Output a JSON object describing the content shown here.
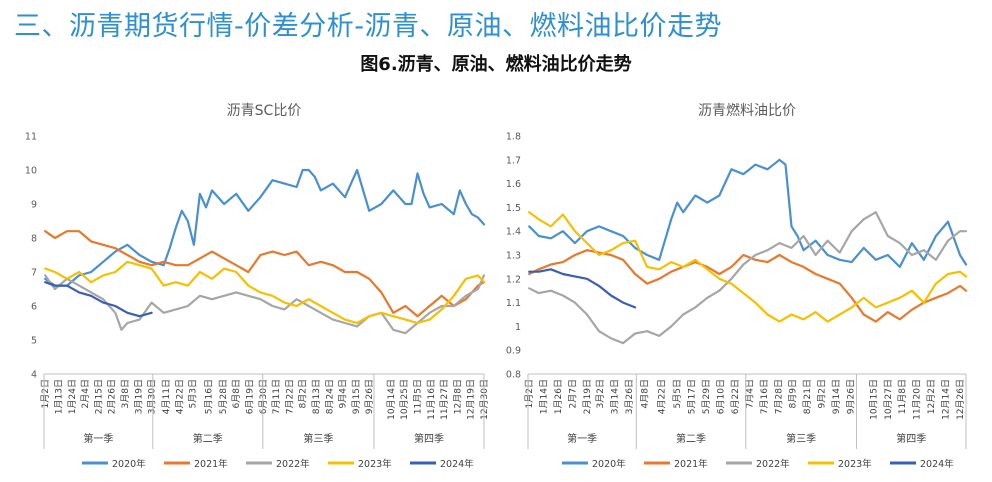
{
  "page": {
    "title": "三、沥青期货行情-价差分析-沥青、原油、燃料油比价走势",
    "figure_title": "图6.沥青、原油、燃料油比价走势"
  },
  "colors": {
    "2020年": "#4a90d0",
    "2021年": "#e8782b",
    "2022年": "#a6a6a6",
    "2023年": "#f6c000",
    "2024年": "#3a5eb5"
  },
  "chart_data": [
    {
      "type": "line",
      "title": "沥青SC比价",
      "ylim": [
        4,
        11
      ],
      "yticks": [
        4,
        5,
        6,
        7,
        8,
        9,
        10,
        11
      ],
      "x_range": [
        1,
        365
      ],
      "xlabels": [
        {
          "label": "1月2日",
          "day": 2
        },
        {
          "label": "1月13日",
          "day": 13
        },
        {
          "label": "1月24日",
          "day": 24
        },
        {
          "label": "2月4日",
          "day": 35
        },
        {
          "label": "2月15日",
          "day": 46
        },
        {
          "label": "2月26日",
          "day": 57
        },
        {
          "label": "3月8日",
          "day": 68
        },
        {
          "label": "3月19日",
          "day": 79
        },
        {
          "label": "3月30日",
          "day": 90
        },
        {
          "label": "4月11日",
          "day": 102
        },
        {
          "label": "4月22日",
          "day": 113
        },
        {
          "label": "5月3日",
          "day": 124
        },
        {
          "label": "5月16日",
          "day": 137
        },
        {
          "label": "5月28日",
          "day": 149
        },
        {
          "label": "6月8日",
          "day": 160
        },
        {
          "label": "6月19日",
          "day": 171
        },
        {
          "label": "6月30日",
          "day": 182
        },
        {
          "label": "7月11日",
          "day": 193
        },
        {
          "label": "7月22日",
          "day": 204
        },
        {
          "label": "8月2日",
          "day": 215
        },
        {
          "label": "8月13日",
          "day": 226
        },
        {
          "label": "8月24日",
          "day": 237
        },
        {
          "label": "9月4日",
          "day": 248
        },
        {
          "label": "9月15日",
          "day": 259
        },
        {
          "label": "9月26日",
          "day": 270
        },
        {
          "label": "10月14日",
          "day": 288
        },
        {
          "label": "10月25日",
          "day": 299
        },
        {
          "label": "11月5日",
          "day": 310
        },
        {
          "label": "11月16日",
          "day": 321
        },
        {
          "label": "11月27日",
          "day": 332
        },
        {
          "label": "12月8日",
          "day": 343
        },
        {
          "label": "12月19日",
          "day": 354
        },
        {
          "label": "12月30日",
          "day": 365
        }
      ],
      "quarters": [
        "第一季",
        "第二季",
        "第三季",
        "第四季"
      ],
      "series": [
        {
          "name": "2020年",
          "x": [
            2,
            10,
            20,
            30,
            40,
            50,
            60,
            70,
            80,
            90,
            100,
            105,
            110,
            115,
            120,
            125,
            130,
            135,
            140,
            150,
            160,
            170,
            180,
            190,
            200,
            210,
            215,
            220,
            225,
            230,
            240,
            250,
            255,
            260,
            270,
            280,
            290,
            300,
            305,
            310,
            315,
            320,
            330,
            340,
            345,
            350,
            355,
            360,
            365
          ],
          "y": [
            6.8,
            6.6,
            6.6,
            6.9,
            7.0,
            7.3,
            7.6,
            7.8,
            7.5,
            7.3,
            7.2,
            7.7,
            8.3,
            8.8,
            8.5,
            7.8,
            9.3,
            8.9,
            9.4,
            9.0,
            9.3,
            8.8,
            9.2,
            9.7,
            9.6,
            9.5,
            10.0,
            10.0,
            9.8,
            9.4,
            9.6,
            9.2,
            9.6,
            10.0,
            8.8,
            9.0,
            9.4,
            9.0,
            9.0,
            9.9,
            9.3,
            8.9,
            9.0,
            8.7,
            9.4,
            9.0,
            8.7,
            8.6,
            8.4
          ]
        },
        {
          "name": "2021年",
          "x": [
            2,
            10,
            20,
            30,
            40,
            50,
            60,
            70,
            80,
            90,
            100,
            110,
            120,
            130,
            140,
            150,
            160,
            170,
            180,
            190,
            200,
            210,
            220,
            230,
            240,
            250,
            260,
            270,
            280,
            290,
            300,
            310,
            320,
            330,
            340,
            350,
            360,
            365
          ],
          "y": [
            8.2,
            8.0,
            8.2,
            8.2,
            7.9,
            7.8,
            7.7,
            7.5,
            7.3,
            7.2,
            7.3,
            7.2,
            7.2,
            7.4,
            7.6,
            7.4,
            7.2,
            7.0,
            7.5,
            7.6,
            7.5,
            7.6,
            7.2,
            7.3,
            7.2,
            7.0,
            7.0,
            6.8,
            6.4,
            5.8,
            6.0,
            5.7,
            6.0,
            6.3,
            6.0,
            6.2,
            6.6,
            6.7
          ]
        },
        {
          "name": "2022年",
          "x": [
            2,
            10,
            20,
            30,
            40,
            50,
            60,
            65,
            70,
            80,
            90,
            100,
            110,
            120,
            130,
            140,
            150,
            160,
            170,
            180,
            190,
            200,
            210,
            220,
            230,
            240,
            250,
            260,
            270,
            280,
            290,
            300,
            310,
            320,
            330,
            340,
            350,
            360,
            365
          ],
          "y": [
            6.9,
            6.5,
            6.8,
            6.6,
            6.4,
            6.2,
            5.8,
            5.3,
            5.5,
            5.6,
            6.1,
            5.8,
            5.9,
            6.0,
            6.3,
            6.2,
            6.3,
            6.4,
            6.3,
            6.2,
            6.0,
            5.9,
            6.2,
            6.0,
            5.8,
            5.6,
            5.5,
            5.4,
            5.7,
            5.8,
            5.3,
            5.2,
            5.5,
            5.8,
            6.0,
            6.0,
            6.3,
            6.5,
            6.9
          ]
        },
        {
          "name": "2023年",
          "x": [
            2,
            10,
            20,
            30,
            40,
            50,
            60,
            70,
            80,
            90,
            100,
            110,
            120,
            130,
            140,
            150,
            160,
            170,
            180,
            190,
            200,
            210,
            220,
            230,
            240,
            250,
            260,
            270,
            280,
            290,
            300,
            310,
            320,
            330,
            340,
            350,
            360,
            365
          ],
          "y": [
            7.1,
            7.0,
            6.8,
            7.0,
            6.7,
            6.9,
            7.0,
            7.3,
            7.2,
            7.1,
            6.6,
            6.7,
            6.6,
            7.0,
            6.8,
            7.1,
            7.0,
            6.6,
            6.4,
            6.3,
            6.1,
            6.0,
            6.2,
            6.0,
            5.8,
            5.6,
            5.5,
            5.7,
            5.8,
            5.7,
            5.6,
            5.5,
            5.6,
            5.9,
            6.3,
            6.8,
            6.9,
            6.7
          ]
        },
        {
          "name": "2024年",
          "x": [
            2,
            10,
            20,
            30,
            40,
            50,
            60,
            70,
            80,
            90
          ],
          "y": [
            6.7,
            6.6,
            6.6,
            6.4,
            6.3,
            6.1,
            6.0,
            5.8,
            5.7,
            5.8
          ]
        }
      ],
      "legend": [
        "2020年",
        "2021年",
        "2022年",
        "2023年",
        "2024年"
      ]
    },
    {
      "type": "line",
      "title": "沥青燃料油比价",
      "ylim": [
        0.8,
        1.8
      ],
      "yticks": [
        0.8,
        0.9,
        1,
        1.1,
        1.2,
        1.3,
        1.4,
        1.5,
        1.6,
        1.7,
        1.8
      ],
      "x_range": [
        1,
        365
      ],
      "xlabels": [
        {
          "label": "1月2日",
          "day": 2
        },
        {
          "label": "1月14日",
          "day": 14
        },
        {
          "label": "1月26日",
          "day": 26
        },
        {
          "label": "2月7日",
          "day": 38
        },
        {
          "label": "2月19日",
          "day": 50
        },
        {
          "label": "3月2日",
          "day": 61
        },
        {
          "label": "3月14日",
          "day": 73
        },
        {
          "label": "3月26日",
          "day": 85
        },
        {
          "label": "4月8日",
          "day": 98
        },
        {
          "label": "4月22日",
          "day": 112
        },
        {
          "label": "5月5日",
          "day": 125
        },
        {
          "label": "5月17日",
          "day": 137
        },
        {
          "label": "5月29日",
          "day": 149
        },
        {
          "label": "6月10日",
          "day": 161
        },
        {
          "label": "6月22日",
          "day": 173
        },
        {
          "label": "7月4日",
          "day": 185
        },
        {
          "label": "7月16日",
          "day": 197
        },
        {
          "label": "7月28日",
          "day": 209
        },
        {
          "label": "8月9日",
          "day": 221
        },
        {
          "label": "8月21日",
          "day": 233
        },
        {
          "label": "9月2日",
          "day": 245
        },
        {
          "label": "9月14日",
          "day": 257
        },
        {
          "label": "9月26日",
          "day": 269
        },
        {
          "label": "10月15日",
          "day": 288
        },
        {
          "label": "10月27日",
          "day": 300
        },
        {
          "label": "11月8日",
          "day": 312
        },
        {
          "label": "11月20日",
          "day": 324
        },
        {
          "label": "12月2日",
          "day": 336
        },
        {
          "label": "12月14日",
          "day": 348
        },
        {
          "label": "12月26日",
          "day": 360
        }
      ],
      "quarters": [
        "第一季",
        "第二季",
        "第三季",
        "第四季"
      ],
      "series": [
        {
          "name": "2020年",
          "x": [
            2,
            10,
            20,
            30,
            40,
            50,
            60,
            70,
            80,
            90,
            100,
            110,
            120,
            125,
            130,
            140,
            150,
            160,
            170,
            180,
            190,
            200,
            210,
            215,
            220,
            225,
            230,
            240,
            250,
            260,
            270,
            280,
            290,
            300,
            310,
            320,
            330,
            340,
            350,
            360,
            365
          ],
          "y": [
            1.42,
            1.38,
            1.37,
            1.4,
            1.35,
            1.4,
            1.42,
            1.4,
            1.38,
            1.33,
            1.3,
            1.28,
            1.45,
            1.52,
            1.48,
            1.55,
            1.52,
            1.55,
            1.66,
            1.64,
            1.68,
            1.66,
            1.7,
            1.68,
            1.42,
            1.38,
            1.32,
            1.36,
            1.3,
            1.28,
            1.27,
            1.33,
            1.28,
            1.3,
            1.25,
            1.35,
            1.28,
            1.38,
            1.44,
            1.3,
            1.26
          ]
        },
        {
          "name": "2021年",
          "x": [
            2,
            10,
            20,
            30,
            40,
            50,
            60,
            70,
            80,
            90,
            100,
            110,
            120,
            130,
            140,
            150,
            160,
            170,
            180,
            190,
            200,
            210,
            220,
            230,
            240,
            250,
            260,
            270,
            280,
            290,
            300,
            310,
            320,
            330,
            340,
            350,
            360,
            365
          ],
          "y": [
            1.22,
            1.24,
            1.26,
            1.27,
            1.3,
            1.32,
            1.31,
            1.3,
            1.28,
            1.22,
            1.18,
            1.2,
            1.23,
            1.25,
            1.27,
            1.25,
            1.22,
            1.25,
            1.3,
            1.28,
            1.27,
            1.3,
            1.27,
            1.25,
            1.22,
            1.2,
            1.18,
            1.12,
            1.05,
            1.02,
            1.06,
            1.03,
            1.07,
            1.1,
            1.12,
            1.14,
            1.17,
            1.15
          ]
        },
        {
          "name": "2022年",
          "x": [
            2,
            10,
            20,
            30,
            40,
            50,
            60,
            70,
            80,
            90,
            100,
            110,
            120,
            130,
            140,
            150,
            160,
            170,
            180,
            190,
            200,
            210,
            220,
            230,
            240,
            250,
            260,
            270,
            280,
            290,
            300,
            310,
            320,
            330,
            340,
            350,
            360,
            365
          ],
          "y": [
            1.16,
            1.14,
            1.15,
            1.13,
            1.1,
            1.05,
            0.98,
            0.95,
            0.93,
            0.97,
            0.98,
            0.96,
            1.0,
            1.05,
            1.08,
            1.12,
            1.15,
            1.2,
            1.26,
            1.3,
            1.32,
            1.35,
            1.33,
            1.38,
            1.3,
            1.36,
            1.31,
            1.4,
            1.45,
            1.48,
            1.38,
            1.35,
            1.3,
            1.32,
            1.28,
            1.36,
            1.4,
            1.4
          ]
        },
        {
          "name": "2023年",
          "x": [
            2,
            10,
            20,
            30,
            40,
            50,
            60,
            70,
            80,
            90,
            100,
            110,
            120,
            130,
            140,
            150,
            160,
            170,
            180,
            190,
            200,
            210,
            220,
            230,
            240,
            250,
            260,
            270,
            280,
            290,
            300,
            310,
            320,
            330,
            340,
            350,
            360,
            365
          ],
          "y": [
            1.48,
            1.45,
            1.42,
            1.47,
            1.4,
            1.35,
            1.3,
            1.32,
            1.35,
            1.36,
            1.25,
            1.24,
            1.27,
            1.25,
            1.28,
            1.24,
            1.2,
            1.18,
            1.14,
            1.1,
            1.05,
            1.02,
            1.05,
            1.03,
            1.06,
            1.02,
            1.05,
            1.08,
            1.12,
            1.08,
            1.1,
            1.12,
            1.15,
            1.1,
            1.18,
            1.22,
            1.23,
            1.21
          ]
        },
        {
          "name": "2024年",
          "x": [
            2,
            10,
            20,
            30,
            40,
            50,
            60,
            70,
            80,
            90
          ],
          "y": [
            1.23,
            1.23,
            1.24,
            1.22,
            1.21,
            1.2,
            1.17,
            1.13,
            1.1,
            1.08
          ]
        }
      ],
      "legend": [
        "2020年",
        "2021年",
        "2022年",
        "2023年",
        "2024年"
      ]
    }
  ]
}
